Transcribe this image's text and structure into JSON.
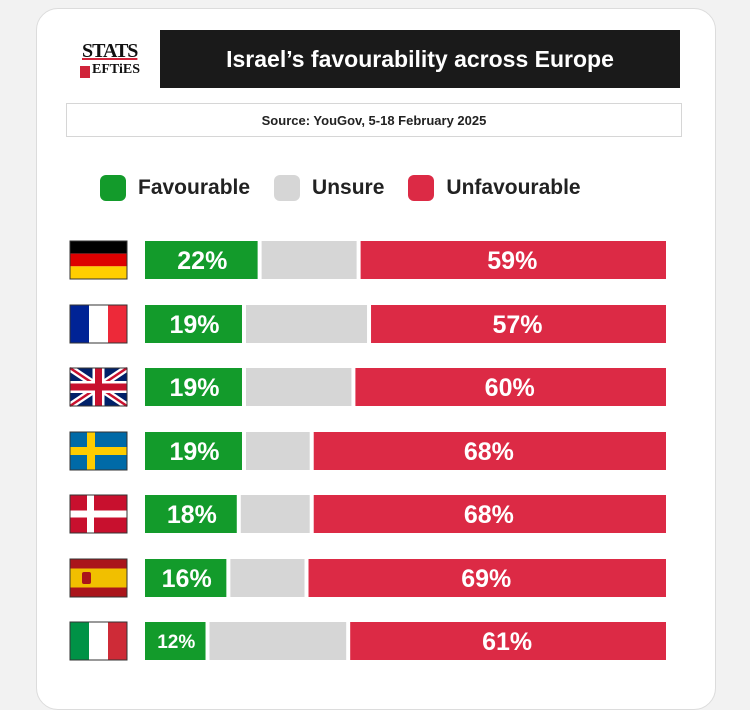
{
  "header": {
    "logo_text_top": "STATS",
    "logo_text_bottom": "EFTiES",
    "title": "Israel’s favourability across Europe",
    "source": "Source: YouGov, 5-18 February 2025"
  },
  "chart_data": {
    "type": "bar",
    "orientation": "horizontal-stacked-100",
    "title": "Israel’s favourability across Europe",
    "categories": [
      "Germany",
      "France",
      "United Kingdom",
      "Sweden",
      "Denmark",
      "Spain",
      "Italy"
    ],
    "series": [
      {
        "name": "Favourable",
        "values": [
          22,
          19,
          19,
          19,
          18,
          16,
          12
        ],
        "color": "#139b2b"
      },
      {
        "name": "Unsure",
        "values": [
          19,
          24,
          21,
          13,
          14,
          15,
          27
        ],
        "color": "#d6d6d6"
      },
      {
        "name": "Unfavourable",
        "values": [
          59,
          57,
          60,
          68,
          68,
          69,
          61
        ],
        "color": "#dc2a45"
      }
    ],
    "labels": {
      "favourable": [
        "22%",
        "19%",
        "19%",
        "19%",
        "18%",
        "16%",
        "12%"
      ],
      "unfavourable": [
        "59%",
        "57%",
        "60%",
        "68%",
        "68%",
        "69%",
        "61%"
      ]
    },
    "legend": [
      "Favourable",
      "Unsure",
      "Unfavourable"
    ],
    "legend_position": "top",
    "xlim": [
      0,
      100
    ]
  },
  "colors": {
    "favourable": "#139b2b",
    "unsure": "#d6d6d6",
    "unfavourable": "#dc2a45",
    "title_bg": "#1a1a1a"
  }
}
